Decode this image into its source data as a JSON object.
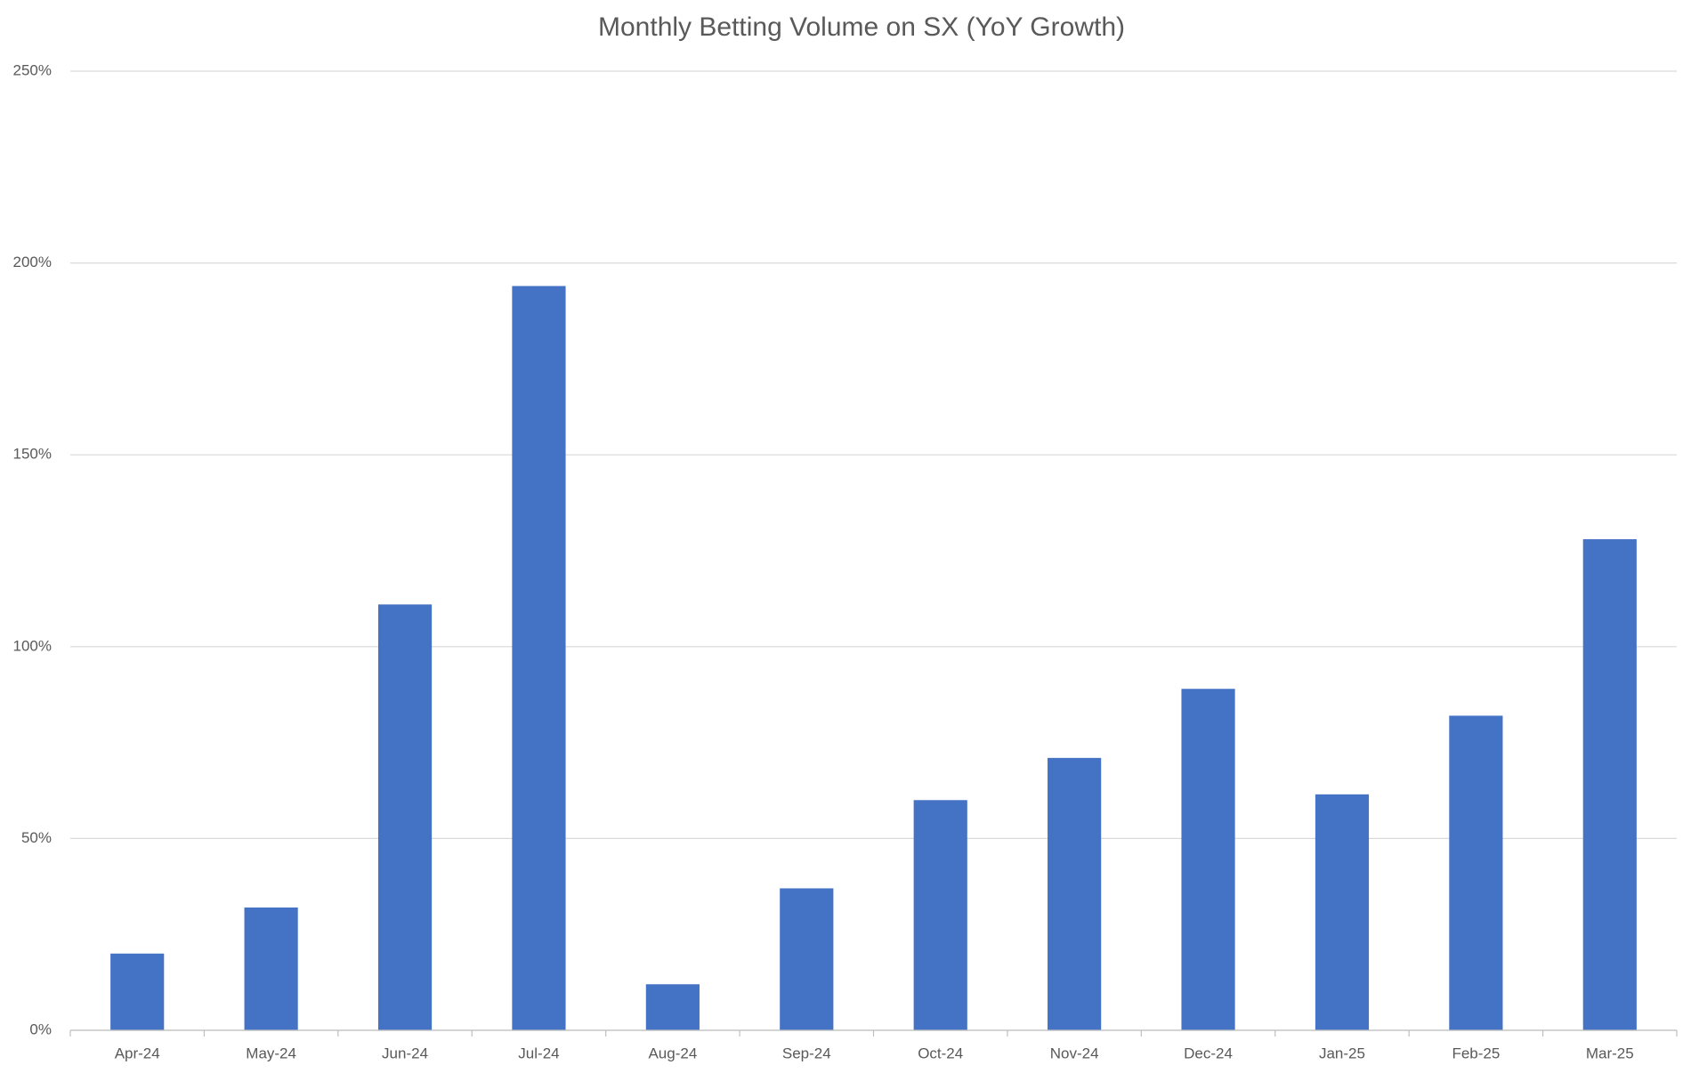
{
  "chart_data": {
    "type": "bar",
    "title": "Monthly Betting Volume on SX (YoY Growth)",
    "categories": [
      "Apr-24",
      "May-24",
      "Jun-24",
      "Jul-24",
      "Aug-24",
      "Sep-24",
      "Oct-24",
      "Nov-24",
      "Dec-24",
      "Jan-25",
      "Feb-25",
      "Mar-25"
    ],
    "values": [
      20,
      32,
      111,
      194,
      12,
      37,
      60,
      71,
      89,
      61.5,
      82,
      128
    ],
    "color": "#4472c4",
    "ylim": [
      0,
      250
    ],
    "yticks": [
      {
        "value": 0,
        "label": "0%"
      },
      {
        "value": 50,
        "label": "50%"
      },
      {
        "value": 100,
        "label": "100%"
      },
      {
        "value": 150,
        "label": "150%"
      },
      {
        "value": 200,
        "label": "200%"
      },
      {
        "value": 250,
        "label": "250%"
      }
    ],
    "grid": true
  }
}
